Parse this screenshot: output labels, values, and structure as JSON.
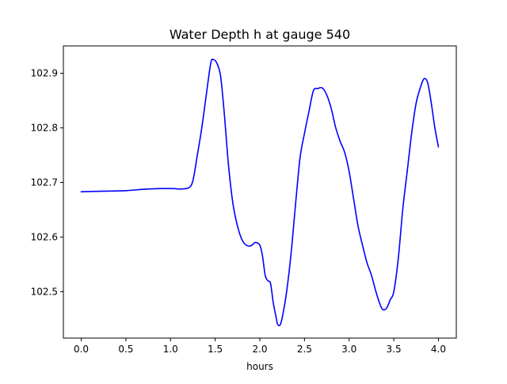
{
  "chart_data": {
    "type": "line",
    "title": "Water Depth h at gauge 540",
    "xlabel": "hours",
    "ylabel": "",
    "xlim": [
      -0.2,
      4.2
    ],
    "ylim": [
      102.415,
      102.95
    ],
    "x_ticks": [
      "0.0",
      "0.5",
      "1.0",
      "1.5",
      "2.0",
      "2.5",
      "3.0",
      "3.5",
      "4.0"
    ],
    "y_ticks": [
      "102.5",
      "102.6",
      "102.7",
      "102.8",
      "102.9"
    ],
    "grid": false,
    "series": [
      {
        "color": "#0000ff",
        "x": [
          0.0,
          0.25,
          0.5,
          0.75,
          1.0,
          1.1,
          1.2,
          1.25,
          1.3,
          1.35,
          1.4,
          1.45,
          1.48,
          1.52,
          1.56,
          1.6,
          1.65,
          1.7,
          1.75,
          1.8,
          1.85,
          1.9,
          1.95,
          2.0,
          2.03,
          2.06,
          2.09,
          2.12,
          2.15,
          2.18,
          2.2,
          2.23,
          2.26,
          2.3,
          2.35,
          2.4,
          2.45,
          2.5,
          2.55,
          2.6,
          2.65,
          2.7,
          2.75,
          2.8,
          2.85,
          2.9,
          2.95,
          3.0,
          3.05,
          3.1,
          3.15,
          3.2,
          3.25,
          3.3,
          3.35,
          3.38,
          3.42,
          3.46,
          3.5,
          3.55,
          3.6,
          3.65,
          3.7,
          3.75,
          3.8,
          3.84,
          3.88,
          3.92,
          3.96,
          4.0
        ],
        "y": [
          102.683,
          102.684,
          102.685,
          102.688,
          102.689,
          102.688,
          102.69,
          102.703,
          102.75,
          102.8,
          102.86,
          102.918,
          102.925,
          102.918,
          102.895,
          102.83,
          102.73,
          102.66,
          102.62,
          102.595,
          102.585,
          102.584,
          102.59,
          102.585,
          102.565,
          102.53,
          102.52,
          102.515,
          102.48,
          102.455,
          102.44,
          102.44,
          102.46,
          102.5,
          102.57,
          102.66,
          102.745,
          102.79,
          102.83,
          102.868,
          102.872,
          102.873,
          102.86,
          102.835,
          102.8,
          102.775,
          102.755,
          102.72,
          102.67,
          102.62,
          102.585,
          102.553,
          102.53,
          102.5,
          102.475,
          102.467,
          102.47,
          102.485,
          102.5,
          102.56,
          102.65,
          102.72,
          102.79,
          102.845,
          102.875,
          102.89,
          102.882,
          102.845,
          102.8,
          102.765
        ]
      }
    ]
  }
}
